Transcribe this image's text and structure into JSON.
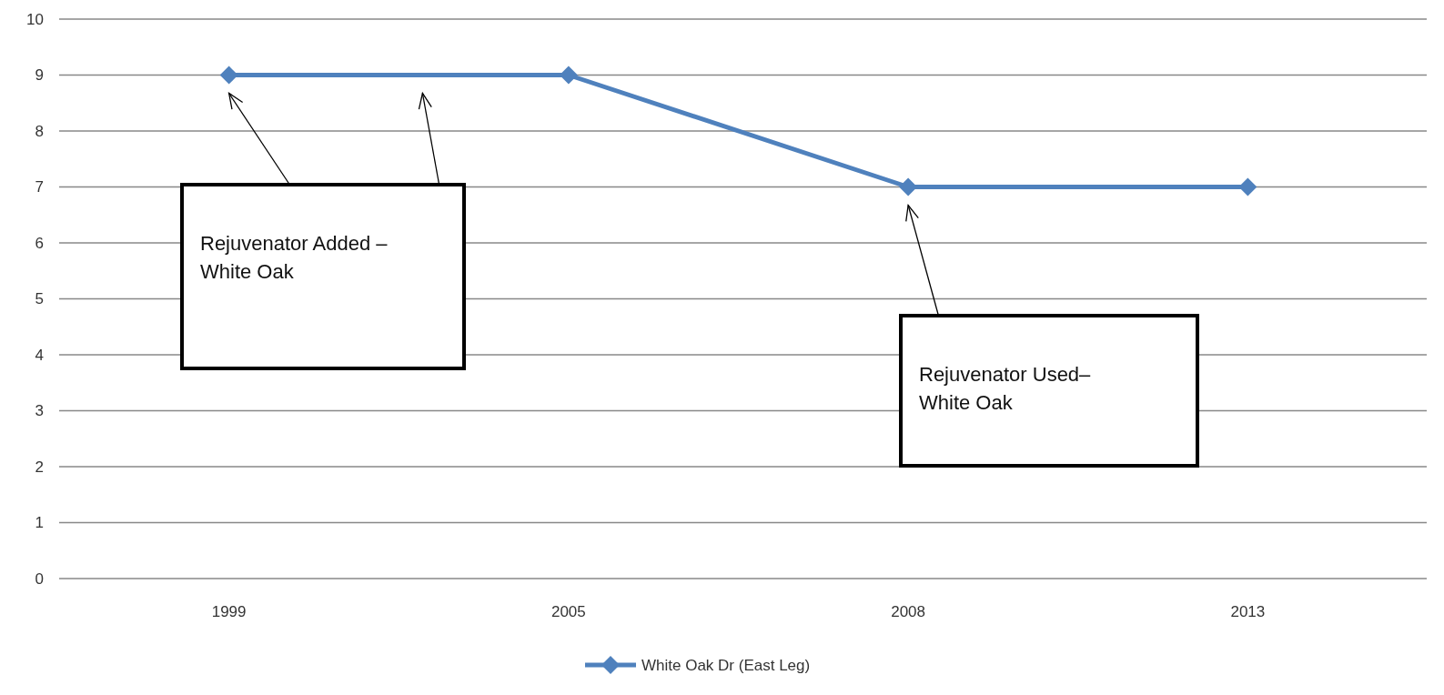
{
  "chart_data": {
    "type": "line",
    "categories": [
      "1999",
      "2005",
      "2008",
      "2013"
    ],
    "series": [
      {
        "name": "White Oak Dr (East Leg)",
        "color": "#4f81bd",
        "values": [
          9,
          9,
          7,
          7
        ]
      }
    ],
    "ylim": [
      0,
      10
    ],
    "yticks": [
      0,
      1,
      2,
      3,
      4,
      5,
      6,
      7,
      8,
      9,
      10
    ],
    "grid": "y",
    "legend": "bottom",
    "marker": "diamond",
    "line_style": "solid",
    "annotations": [
      "Rejuvenator Added –\nWhite Oak",
      "Rejuvenator Used–\nWhite Oak"
    ]
  }
}
